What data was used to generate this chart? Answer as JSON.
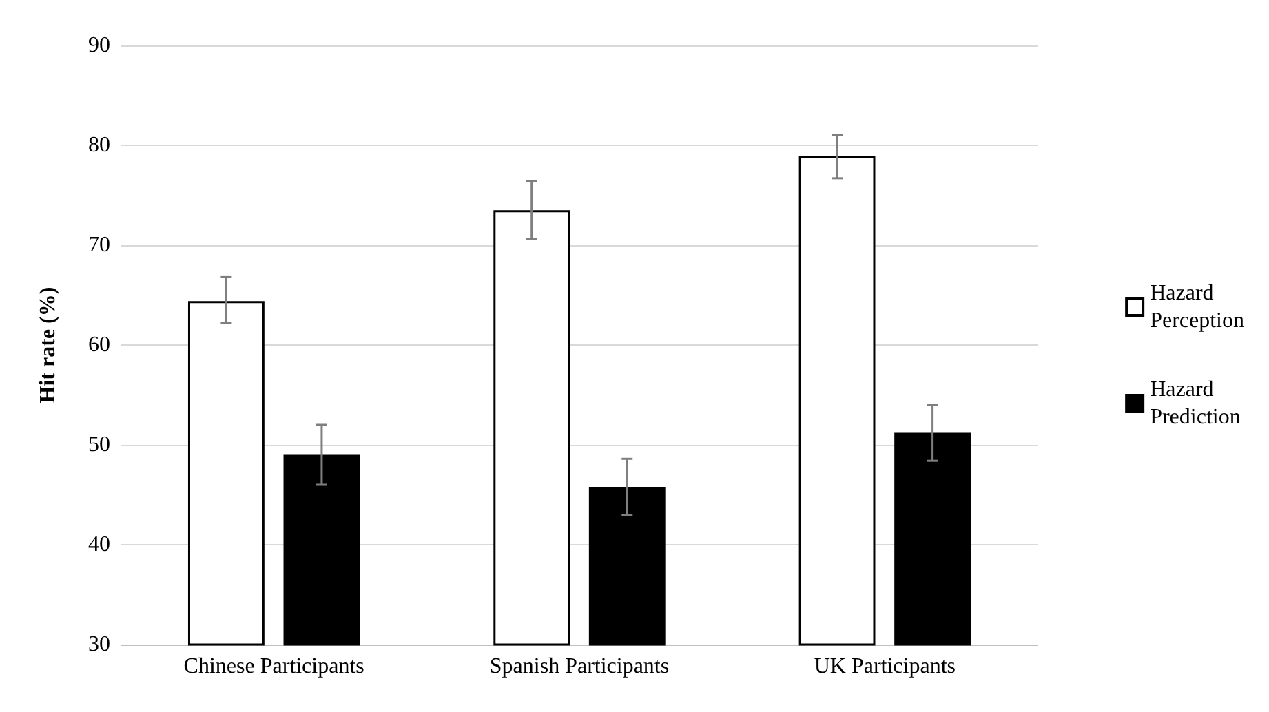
{
  "chart_data": {
    "type": "bar",
    "ylabel": "Hit rate (%)",
    "categories": [
      "Chinese Participants",
      "Spanish Participants",
      "UK Participants"
    ],
    "series": [
      {
        "name": "Hazard Perception",
        "color": "#ffffff",
        "values": [
          64.4,
          73.5,
          78.9
        ],
        "errors": [
          [
            62.2,
            66.8
          ],
          [
            70.6,
            76.4
          ],
          [
            76.7,
            81
          ]
        ]
      },
      {
        "name": "Hazard Prediction",
        "color": "#000000",
        "values": [
          49,
          45.8,
          51.2
        ],
        "errors": [
          [
            46,
            52
          ],
          [
            43,
            48.6
          ],
          [
            48.4,
            54
          ]
        ]
      }
    ],
    "ylim": [
      30,
      90
    ],
    "yticks": [
      30,
      40,
      50,
      60,
      70,
      80,
      90
    ],
    "grid": "y",
    "legend": "right"
  }
}
